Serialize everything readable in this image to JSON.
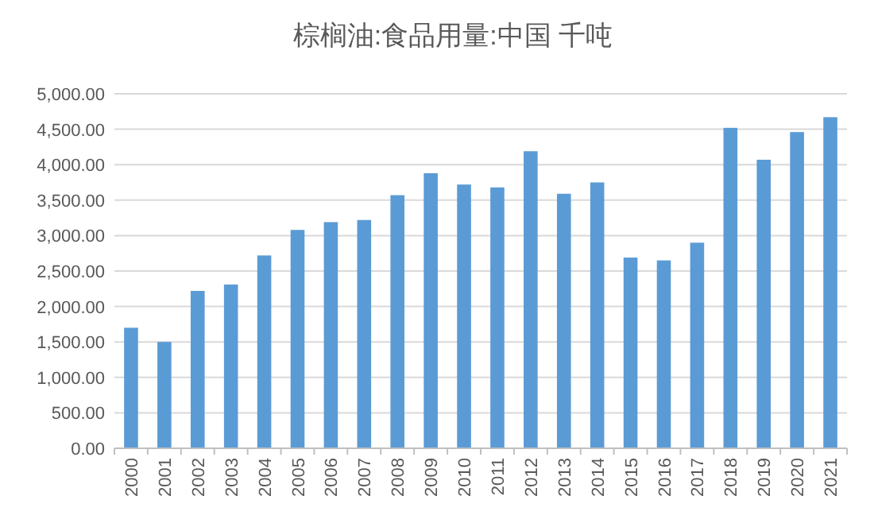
{
  "chart_data": {
    "type": "bar",
    "title": "棕榈油:食品用量:中国 千吨",
    "categories": [
      "2000",
      "2001",
      "2002",
      "2003",
      "2004",
      "2005",
      "2006",
      "2007",
      "2008",
      "2009",
      "2010",
      "2011",
      "2012",
      "2013",
      "2014",
      "2015",
      "2016",
      "2017",
      "2018",
      "2019",
      "2020",
      "2021"
    ],
    "values": [
      1700,
      1500,
      2220,
      2310,
      2720,
      3080,
      3190,
      3220,
      3570,
      3880,
      3720,
      3680,
      4190,
      3590,
      3750,
      2690,
      2650,
      2900,
      4520,
      4070,
      4460,
      4670
    ],
    "color": "#5b9bd5",
    "ylim": [
      0,
      5000
    ],
    "yticks": [
      {
        "value": 0,
        "label": "0.00"
      },
      {
        "value": 500,
        "label": "500.00"
      },
      {
        "value": 1000,
        "label": "1,000.00"
      },
      {
        "value": 1500,
        "label": "1,500.00"
      },
      {
        "value": 2000,
        "label": "2,000.00"
      },
      {
        "value": 2500,
        "label": "2,500.00"
      },
      {
        "value": 3000,
        "label": "3,000.00"
      },
      {
        "value": 3500,
        "label": "3,500.00"
      },
      {
        "value": 4000,
        "label": "4,000.00"
      },
      {
        "value": 4500,
        "label": "4,500.00"
      },
      {
        "value": 5000,
        "label": "5,000.00"
      }
    ],
    "grid": "y"
  }
}
